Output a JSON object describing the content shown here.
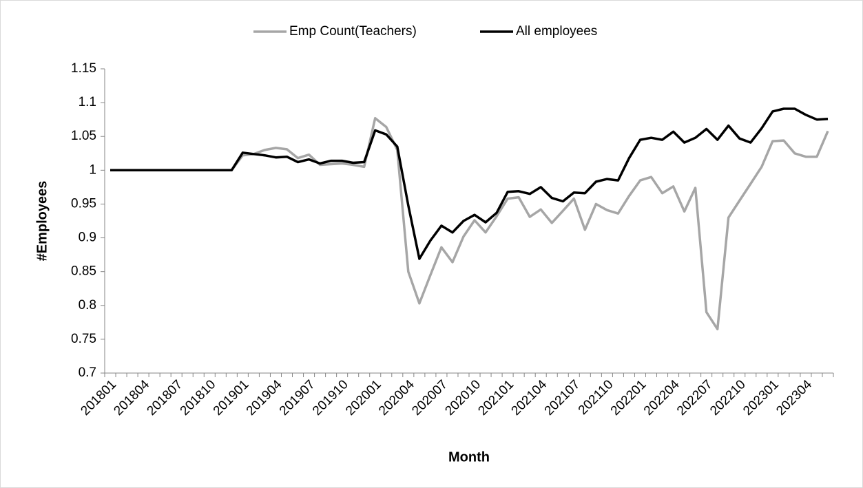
{
  "chart_data": {
    "type": "line",
    "xlabel": "Month",
    "ylabel": "#Employees",
    "categories": [
      "201801",
      null,
      null,
      "201804",
      null,
      null,
      "201807",
      null,
      null,
      "201810",
      null,
      null,
      "201901",
      null,
      null,
      "201904",
      null,
      null,
      "201907",
      null,
      null,
      "201910",
      null,
      null,
      "202001",
      null,
      null,
      "202004",
      null,
      null,
      "202007",
      null,
      null,
      "202010",
      null,
      null,
      "202101",
      null,
      null,
      "202104",
      null,
      null,
      "202107",
      null,
      null,
      "202110",
      null,
      null,
      "202201",
      null,
      null,
      "202204",
      null,
      null,
      "202207",
      null,
      null,
      "202210",
      null,
      null,
      "202301",
      null,
      null,
      "202304",
      null,
      null
    ],
    "series": [
      {
        "name": "Emp Count(Teachers)",
        "color": "#a6a6a6",
        "values": [
          1,
          1,
          1,
          1,
          1,
          1,
          1,
          1,
          1,
          1,
          1,
          1,
          1.022,
          1.024,
          1.03,
          1.033,
          1.031,
          1.018,
          1.023,
          1.008,
          1.009,
          1.01,
          1.008,
          1.005,
          1.077,
          1.064,
          1.03,
          0.85,
          0.803,
          0.845,
          0.886,
          0.864,
          0.902,
          0.926,
          0.908,
          0.932,
          0.958,
          0.96,
          0.931,
          0.942,
          0.922,
          0.94,
          0.958,
          0.912,
          0.95,
          0.941,
          0.936,
          0.962,
          0.985,
          0.99,
          0.966,
          0.976,
          0.939,
          0.974,
          0.79,
          0.765,
          0.93,
          0.955,
          0.98,
          1.005,
          1.043,
          1.044,
          1.025,
          1.02,
          1.02,
          1.058
        ]
      },
      {
        "name": "All employees",
        "color": "#000000",
        "values": [
          1,
          1,
          1,
          1,
          1,
          1,
          1,
          1,
          1,
          1,
          1,
          1,
          1.026,
          1.024,
          1.022,
          1.019,
          1.02,
          1.012,
          1.016,
          1.01,
          1.014,
          1.014,
          1.011,
          1.012,
          1.059,
          1.053,
          1.035,
          0.948,
          0.869,
          0.896,
          0.918,
          0.908,
          0.925,
          0.934,
          0.923,
          0.937,
          0.968,
          0.969,
          0.965,
          0.975,
          0.959,
          0.954,
          0.967,
          0.966,
          0.983,
          0.987,
          0.985,
          1.018,
          1.045,
          1.048,
          1.045,
          1.057,
          1.041,
          1.048,
          1.061,
          1.045,
          1.066,
          1.047,
          1.041,
          1.062,
          1.087,
          1.091,
          1.091,
          1.082,
          1.075,
          1.076
        ]
      }
    ],
    "ylim": [
      0.7,
      1.15
    ],
    "yticks": [
      0.7,
      0.75,
      0.8,
      0.85,
      0.9,
      0.95,
      1,
      1.05,
      1.1,
      1.15
    ],
    "grid": false,
    "legend": "top"
  }
}
